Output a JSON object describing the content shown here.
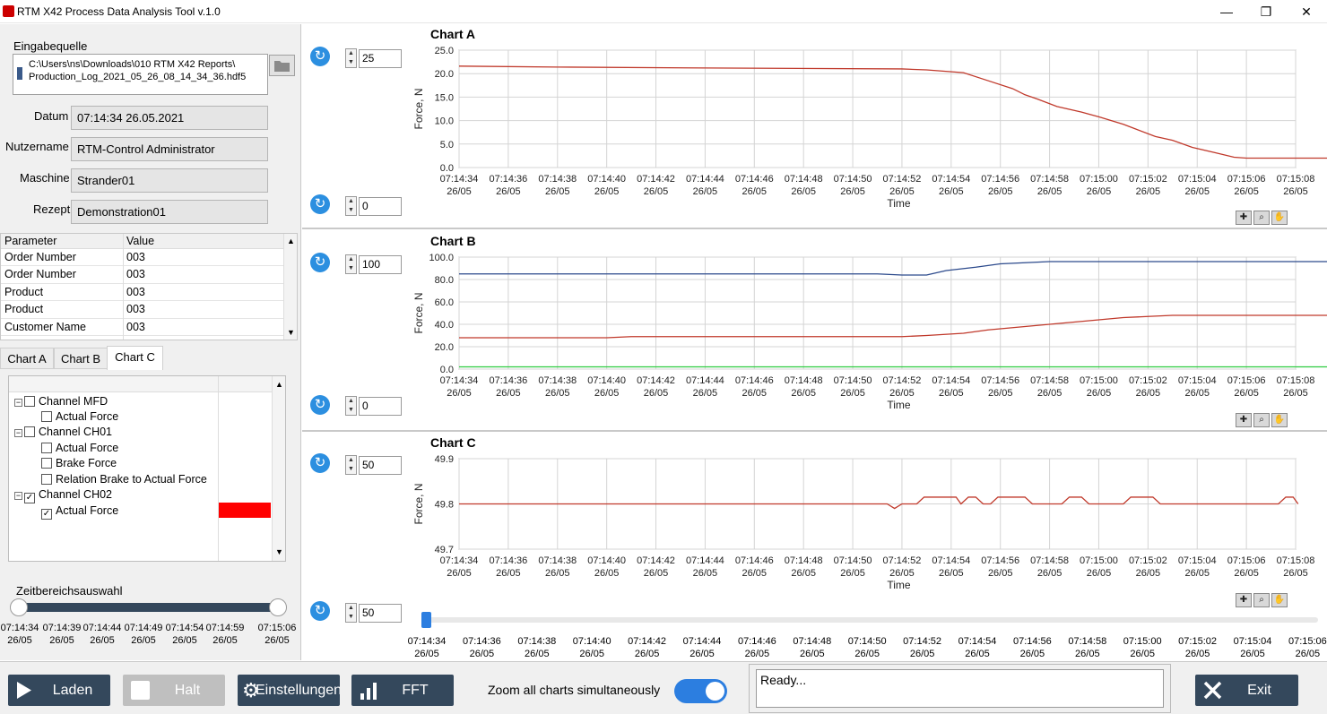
{
  "window": {
    "title": "RTM X42 Process Data Analysis Tool v.1.0",
    "minimize": "—",
    "restore": "❐",
    "close": "✕"
  },
  "input": {
    "label": "Eingabequelle",
    "path_line1": "C:\\Users\\ns\\Downloads\\010 RTM X42 Reports\\",
    "path_line2": "Production_Log_2021_05_26_08_14_34_36.hdf5",
    "folder_icon": "folder-icon"
  },
  "info": {
    "date_label": "Datum",
    "date_value": "07:14:34 26.05.2021",
    "user_label": "Nutzername",
    "user_value": "RTM-Control Administrator",
    "machine_label": "Maschine",
    "machine_value": "Strander01",
    "recipe_label": "Rezept",
    "recipe_value": "Demonstration01"
  },
  "params": {
    "col_parameter": "Parameter",
    "col_value": "Value",
    "rows": [
      {
        "name": "Order Number",
        "value": "003"
      },
      {
        "name": "Order Number",
        "value": "003"
      },
      {
        "name": "Product",
        "value": "003"
      },
      {
        "name": "Product",
        "value": "003"
      },
      {
        "name": "Customer Name",
        "value": "003"
      }
    ]
  },
  "tabs": [
    "Chart A",
    "Chart B",
    "Chart C"
  ],
  "active_tab": "Chart C",
  "tree": {
    "items": [
      {
        "label": "Channel MFD",
        "checked": false,
        "level": 0
      },
      {
        "label": "Actual Force",
        "checked": false,
        "level": 1
      },
      {
        "label": "Channel CH01",
        "checked": false,
        "level": 0
      },
      {
        "label": "Actual Force",
        "checked": false,
        "level": 1
      },
      {
        "label": "Brake Force",
        "checked": false,
        "level": 1
      },
      {
        "label": "Relation Brake to Actual Force",
        "checked": false,
        "level": 1
      },
      {
        "label": "Channel CH02",
        "checked": true,
        "level": 0
      },
      {
        "label": "Actual Force",
        "checked": true,
        "level": 1
      }
    ],
    "swatch_color": "#ff0000"
  },
  "time_range": {
    "label": "Zeitbereichsauswahl",
    "ticks": [
      {
        "time": "07:14:34",
        "date": "26/05"
      },
      {
        "time": "07:14:39",
        "date": "26/05"
      },
      {
        "time": "07:14:44",
        "date": "26/05"
      },
      {
        "time": "07:14:49",
        "date": "26/05"
      },
      {
        "time": "07:14:54",
        "date": "26/05"
      },
      {
        "time": "07:14:59",
        "date": "26/05"
      },
      {
        "time": "07:15:06",
        "date": "26/05"
      }
    ]
  },
  "charts": {
    "a": {
      "max_value": "25",
      "min_value": "0"
    },
    "b": {
      "max_value": "100",
      "min_value": "0"
    },
    "c": {
      "max_value": "50",
      "min_value": "50"
    }
  },
  "chart_data": [
    {
      "type": "line",
      "title": "Chart A",
      "xlabel": "Time",
      "ylabel": "Force, N",
      "ylim": [
        0,
        25
      ],
      "yticks": [
        "0.0",
        "5.0",
        "10.0",
        "15.0",
        "20.0",
        "25.0"
      ],
      "x_ticks": [
        "07:14:34",
        "07:14:36",
        "07:14:38",
        "07:14:40",
        "07:14:42",
        "07:14:44",
        "07:14:46",
        "07:14:48",
        "07:14:50",
        "07:14:52",
        "07:14:54",
        "07:14:56",
        "07:14:58",
        "07:15:00",
        "07:15:02",
        "07:15:04",
        "07:15:06",
        "07:15:08"
      ],
      "x_tick_date": "26/05",
      "grid": true,
      "series": [
        {
          "color": "#c0392b",
          "points": [
            [
              0,
              21.6
            ],
            [
              4,
              21.4
            ],
            [
              10,
              21.2
            ],
            [
              18,
              21.0
            ],
            [
              19,
              20.8
            ],
            [
              20.5,
              20.2
            ],
            [
              21.5,
              18.5
            ],
            [
              22.5,
              16.8
            ],
            [
              23,
              15.5
            ],
            [
              23.5,
              14.6
            ],
            [
              24.3,
              13.0
            ],
            [
              25.3,
              11.8
            ],
            [
              26,
              10.8
            ],
            [
              27,
              9.2
            ],
            [
              27.5,
              8.2
            ],
            [
              28.3,
              6.6
            ],
            [
              29,
              5.8
            ],
            [
              29.8,
              4.3
            ],
            [
              30.7,
              3.2
            ],
            [
              31.5,
              2.2
            ],
            [
              32,
              2.0
            ],
            [
              35,
              2.0
            ],
            [
              40,
              2.0
            ]
          ]
        }
      ]
    },
    {
      "type": "line",
      "title": "Chart B",
      "xlabel": "Time",
      "ylabel": "Force, N",
      "ylim": [
        0,
        100
      ],
      "yticks": [
        "0.0",
        "20.0",
        "40.0",
        "60.0",
        "80.0",
        "100.0"
      ],
      "x_ticks": [
        "07:14:34",
        "07:14:36",
        "07:14:38",
        "07:14:40",
        "07:14:42",
        "07:14:44",
        "07:14:46",
        "07:14:48",
        "07:14:50",
        "07:14:52",
        "07:14:54",
        "07:14:56",
        "07:14:58",
        "07:15:00",
        "07:15:02",
        "07:15:04",
        "07:15:06",
        "07:15:08"
      ],
      "x_tick_date": "26/05",
      "grid": true,
      "series": [
        {
          "color": "#2c4a8c",
          "points": [
            [
              0,
              85
            ],
            [
              17,
              85
            ],
            [
              18,
              84
            ],
            [
              19,
              84
            ],
            [
              19.8,
              88
            ],
            [
              21,
              91
            ],
            [
              22,
              94
            ],
            [
              23,
              95
            ],
            [
              24,
              96
            ],
            [
              40,
              96
            ]
          ]
        },
        {
          "color": "#c0392b",
          "points": [
            [
              0,
              28
            ],
            [
              6,
              28
            ],
            [
              7,
              29
            ],
            [
              18,
              29
            ],
            [
              19,
              30
            ],
            [
              20.5,
              32
            ],
            [
              21.5,
              35
            ],
            [
              23,
              38
            ],
            [
              24,
              40
            ],
            [
              25,
              42
            ],
            [
              26,
              44
            ],
            [
              27,
              46
            ],
            [
              28,
              47
            ],
            [
              29,
              48
            ],
            [
              40,
              48
            ]
          ]
        },
        {
          "color": "#2ecc40",
          "points": [
            [
              0,
              2
            ],
            [
              40,
              2
            ]
          ]
        }
      ]
    },
    {
      "type": "line",
      "title": "Chart C",
      "xlabel": "Time",
      "ylabel": "Force, N",
      "ylim": [
        49.7,
        49.9
      ],
      "yticks": [
        "49.7",
        "49.8",
        "49.9"
      ],
      "x_ticks": [
        "07:14:34",
        "07:14:36",
        "07:14:38",
        "07:14:40",
        "07:14:42",
        "07:14:44",
        "07:14:46",
        "07:14:48",
        "07:14:50",
        "07:14:52",
        "07:14:54",
        "07:14:56",
        "07:14:58",
        "07:15:00",
        "07:15:02",
        "07:15:04",
        "07:15:06",
        "07:15:08"
      ],
      "x_tick_date": "26/05",
      "grid": true,
      "series": [
        {
          "color": "#c0392b",
          "points": [
            [
              0,
              49.8
            ],
            [
              17.4,
              49.8
            ],
            [
              17.7,
              49.79
            ],
            [
              18,
              49.8
            ],
            [
              18.6,
              49.8
            ],
            [
              18.9,
              49.815
            ],
            [
              20.2,
              49.815
            ],
            [
              20.4,
              49.8
            ],
            [
              20.7,
              49.815
            ],
            [
              21,
              49.815
            ],
            [
              21.3,
              49.8
            ],
            [
              21.6,
              49.8
            ],
            [
              21.9,
              49.815
            ],
            [
              23,
              49.815
            ],
            [
              23.3,
              49.8
            ],
            [
              24.5,
              49.8
            ],
            [
              24.8,
              49.815
            ],
            [
              25.3,
              49.815
            ],
            [
              25.6,
              49.8
            ],
            [
              27,
              49.8
            ],
            [
              27.3,
              49.815
            ],
            [
              28.2,
              49.815
            ],
            [
              28.5,
              49.8
            ],
            [
              33.3,
              49.8
            ],
            [
              33.6,
              49.815
            ],
            [
              33.9,
              49.815
            ],
            [
              34.1,
              49.8
            ]
          ]
        }
      ]
    }
  ],
  "scroll_ticks": [
    "07:14:34",
    "07:14:36",
    "07:14:38",
    "07:14:40",
    "07:14:42",
    "07:14:44",
    "07:14:46",
    "07:14:48",
    "07:14:50",
    "07:14:52",
    "07:14:54",
    "07:14:56",
    "07:14:58",
    "07:15:00",
    "07:15:02",
    "07:15:04",
    "07:15:06"
  ],
  "scroll_tick_date": "26/05",
  "scroll_value": "50",
  "buttons": {
    "load": "Laden",
    "halt": "Halt",
    "settings": "Einstellungen",
    "fft": "FFT",
    "exit": "Exit",
    "zoom_toggle_label": "Zoom all charts simultaneously",
    "zoom_toggle_on": true
  },
  "status": {
    "text": "Ready..."
  },
  "colors": {
    "accent": "#34485c",
    "toggle": "#2c7ee0",
    "red_series": "#c0392b",
    "blue_series": "#2c4a8c",
    "green_series": "#2ecc40"
  },
  "icons": {
    "refresh": "refresh-icon",
    "play": "play-icon",
    "stop": "stop-icon",
    "gear": "gear-icon",
    "bar": "bar-chart-icon",
    "x": "close-icon",
    "crosshair": "crosshair-icon",
    "zoom": "zoom-icon",
    "pan": "pan-hand-icon"
  }
}
